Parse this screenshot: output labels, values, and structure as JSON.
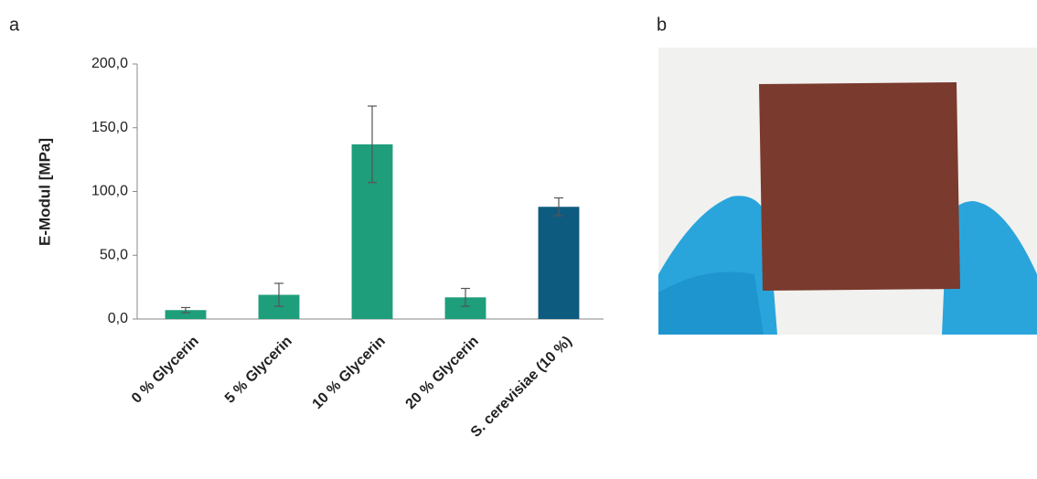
{
  "panel_labels": [
    "a",
    "b"
  ],
  "chart_data": {
    "type": "bar",
    "ylabel": "E-Modul [MPa]",
    "categories": [
      "0 % Glycerin",
      "5 % Glycerin",
      "10 % Glycerin",
      "20 % Glycerin",
      "S. cerevisiae (10 %)"
    ],
    "values": [
      7,
      19,
      137,
      17,
      88
    ],
    "errors": [
      2,
      9,
      30,
      7,
      7
    ],
    "colors": [
      "#1f9e7c",
      "#1f9e7c",
      "#1f9e7c",
      "#1f9e7c",
      "#0e5b80"
    ],
    "ylim": [
      0,
      200
    ],
    "yticks": [
      {
        "value": 0,
        "label": "0,0"
      },
      {
        "value": 50,
        "label": "50,0"
      },
      {
        "value": 100,
        "label": "100,0"
      },
      {
        "value": 150,
        "label": "150,0"
      },
      {
        "value": 200,
        "label": "200,0"
      }
    ]
  }
}
